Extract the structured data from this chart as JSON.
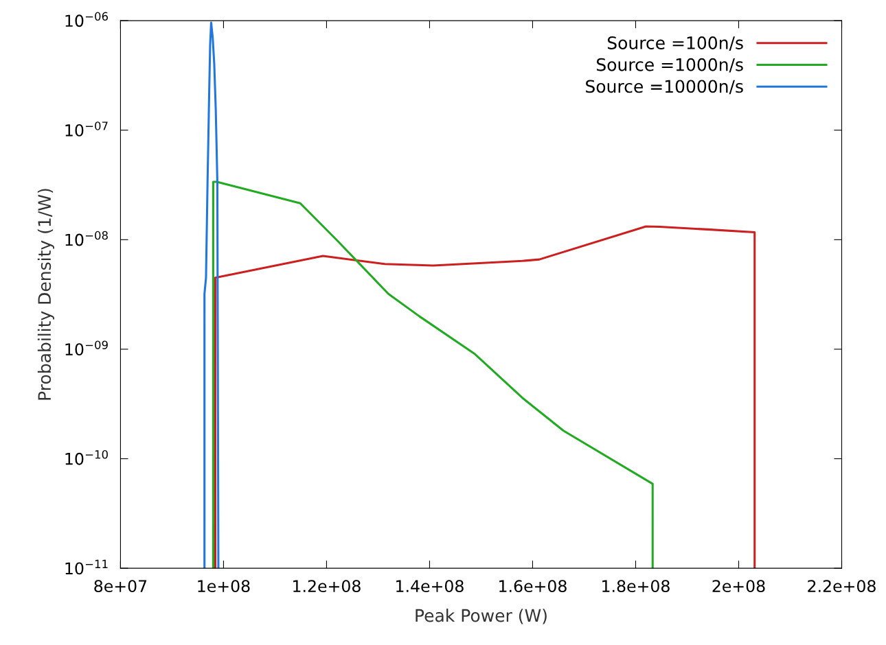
{
  "chart_data": {
    "type": "line",
    "xlabel": "Peak Power (W)",
    "ylabel": "Probability Density (1/W)",
    "log": "y",
    "xlim": [
      80000000,
      220000000
    ],
    "ylim": [
      1e-11,
      1e-06
    ],
    "xticks": [
      {
        "value": 80000000,
        "label": "8e+07"
      },
      {
        "value": 100000000,
        "label": "1e+08"
      },
      {
        "value": 120000000,
        "label": "1.2e+08"
      },
      {
        "value": 140000000,
        "label": "1.4e+08"
      },
      {
        "value": 160000000,
        "label": "1.6e+08"
      },
      {
        "value": 180000000,
        "label": "1.8e+08"
      },
      {
        "value": 200000000,
        "label": "2e+08"
      },
      {
        "value": 220000000,
        "label": "2.2e+08"
      }
    ],
    "yticks": [
      {
        "value": 1e-11,
        "label": "10$^{−11}$"
      },
      {
        "value": 1e-10,
        "label": "10$^{−10}$"
      },
      {
        "value": 1e-09,
        "label": "10$^{−09}$"
      },
      {
        "value": 1e-08,
        "label": "10$^{−08}$"
      },
      {
        "value": 1e-07,
        "label": "10$^{−07}$"
      },
      {
        "value": 1e-06,
        "label": "10$^{−06}$"
      }
    ],
    "legend": "top right",
    "grid": false,
    "line_style": "solid",
    "marker": "none",
    "series": [
      {
        "name": "Source =100n/s",
        "color": "#cc2020",
        "x": [
          98400000,
          98400000,
          119300000,
          131300000,
          140700000,
          158000000,
          161300000,
          182000000,
          184700000,
          194000000,
          203100000,
          203100000
        ],
        "values": [
          1e-11,
          4.5e-09,
          7.1e-09,
          6e-09,
          5.8e-09,
          6.4e-09,
          6.6e-09,
          1.32e-08,
          1.31e-08,
          1.24e-08,
          1.17e-08,
          1e-11
        ]
      },
      {
        "name": "Source =1000n/s",
        "color": "#22aa22",
        "x": [
          98000000,
          98000000,
          98700000,
          114900000,
          122000000,
          132000000,
          138000000,
          148700000,
          158000000,
          166000000,
          183300000,
          183300000
        ],
        "values": [
          1e-11,
          3.37e-08,
          3.37e-08,
          2.15e-08,
          9.9e-09,
          3.2e-09,
          2e-09,
          9.1e-10,
          3.6e-10,
          1.8e-10,
          5.9e-11,
          1e-11
        ]
      },
      {
        "name": "Source =10000n/s",
        "color": "#2277dd",
        "x": [
          96300000,
          96300000,
          96600000,
          96900000,
          97200000,
          97400000,
          97600000,
          97900000,
          98200000,
          98500000,
          98800000,
          99000000
        ],
        "values": [
          1e-11,
          3.2e-09,
          4.5e-09,
          3.4e-08,
          2e-07,
          6e-07,
          9.6e-07,
          7e-07,
          4e-07,
          1.5e-07,
          3.4e-08,
          1e-11
        ]
      }
    ]
  }
}
